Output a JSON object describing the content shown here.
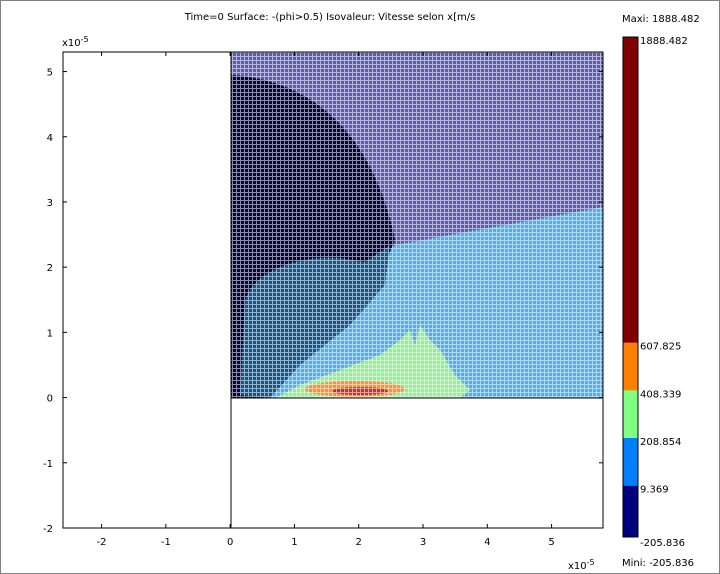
{
  "chart_data": {
    "type": "surface",
    "title": "Time=0    Surface: -(phi>0.5)   Isovaleur: Vitesse selon x[m/s",
    "xlim": [
      -2.6,
      5.8
    ],
    "ylim": [
      -2,
      5.3
    ],
    "xticks": [
      -2,
      -1,
      0,
      1,
      2,
      3,
      4,
      5
    ],
    "yticks": [
      -2,
      -1,
      0,
      1,
      2,
      3,
      4,
      5
    ],
    "x_multiplier": {
      "base": "x10",
      "exponent": "-5"
    },
    "y_multiplier": {
      "base": "x10",
      "exponent": "-5"
    },
    "colorbar": {
      "max_label": "Maxi: 1888.482",
      "min_label": "Mini: -205.836",
      "levels": [
        -205.836,
        9.369,
        208.854,
        408.339,
        607.825,
        1888.482
      ],
      "colors": [
        "#00007f",
        "#0080ff",
        "#80ff80",
        "#ff8000",
        "#800000"
      ]
    }
  }
}
